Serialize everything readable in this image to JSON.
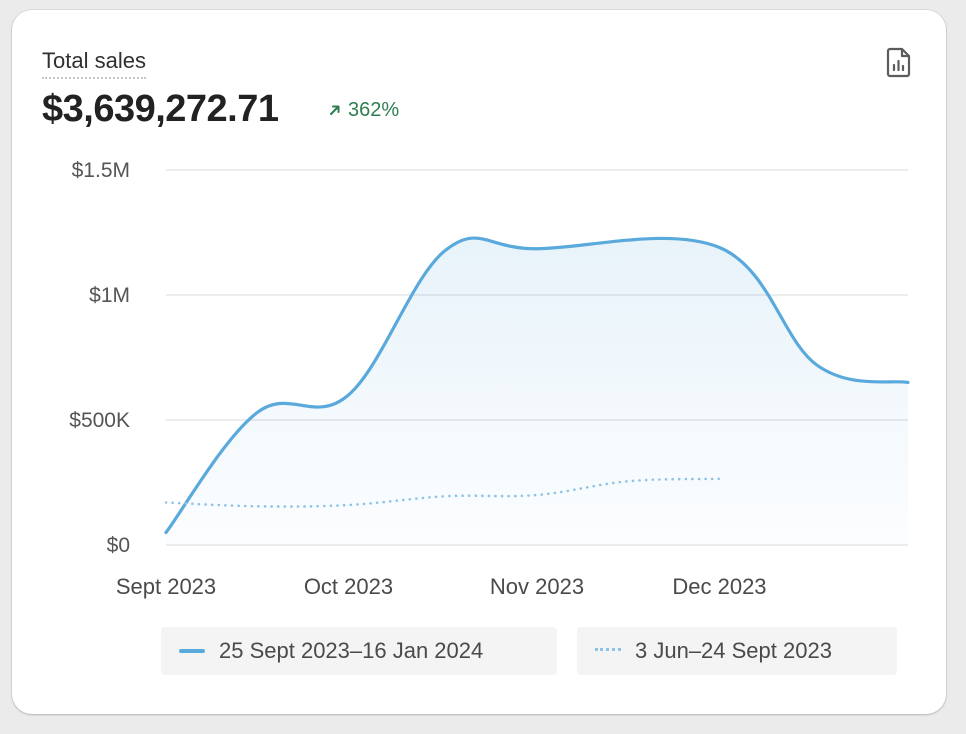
{
  "card": {
    "title": "Total sales",
    "total": "$3,639,272.71",
    "delta": "362%",
    "delta_icon": "arrow-up-right-icon",
    "report_icon": "chart-report-icon"
  },
  "colors": {
    "primary": "#5aa9dc",
    "comparison": "#8cc3e6",
    "positive": "#2f7d4f",
    "grid": "#e6e6e6"
  },
  "chart_data": {
    "type": "area",
    "ylim": [
      0,
      1500000
    ],
    "y_ticks": [
      {
        "value": 0,
        "label": "$0"
      },
      {
        "value": 500000,
        "label": "$500K"
      },
      {
        "value": 1000000,
        "label": "$1M"
      },
      {
        "value": 1500000,
        "label": "$1.5M"
      }
    ],
    "x_ticks": [
      {
        "x": "2023-09-25",
        "label": "Sept 2023"
      },
      {
        "x": "2023-10-25",
        "label": "Oct 2023"
      },
      {
        "x": "2023-11-25",
        "label": "Nov 2023"
      },
      {
        "x": "2023-12-25",
        "label": "Dec 2023"
      }
    ],
    "xlim": [
      "2023-09-25",
      "2024-01-25"
    ],
    "grid": true,
    "series": [
      {
        "name": "25 Sept 2023–16 Jan 2024",
        "style": "solid",
        "points": [
          {
            "x": "2023-09-25",
            "y": 50000
          },
          {
            "x": "2023-10-10",
            "y": 530000
          },
          {
            "x": "2023-10-25",
            "y": 600000
          },
          {
            "x": "2023-11-10",
            "y": 1180000
          },
          {
            "x": "2023-11-25",
            "y": 1185000
          },
          {
            "x": "2023-12-25",
            "y": 1190000
          },
          {
            "x": "2024-01-10",
            "y": 720000
          },
          {
            "x": "2024-01-25",
            "y": 650000
          }
        ]
      },
      {
        "name": "3 Jun–24 Sept 2023",
        "style": "dotted",
        "points": [
          {
            "x": "2023-09-25",
            "y": 170000
          },
          {
            "x": "2023-10-10",
            "y": 155000
          },
          {
            "x": "2023-10-25",
            "y": 160000
          },
          {
            "x": "2023-11-10",
            "y": 195000
          },
          {
            "x": "2023-11-25",
            "y": 200000
          },
          {
            "x": "2023-12-10",
            "y": 255000
          },
          {
            "x": "2023-12-25",
            "y": 265000
          }
        ]
      }
    ]
  },
  "legend": [
    {
      "label": "25 Sept 2023–16 Jan 2024"
    },
    {
      "label": "3 Jun–24 Sept 2023"
    }
  ]
}
